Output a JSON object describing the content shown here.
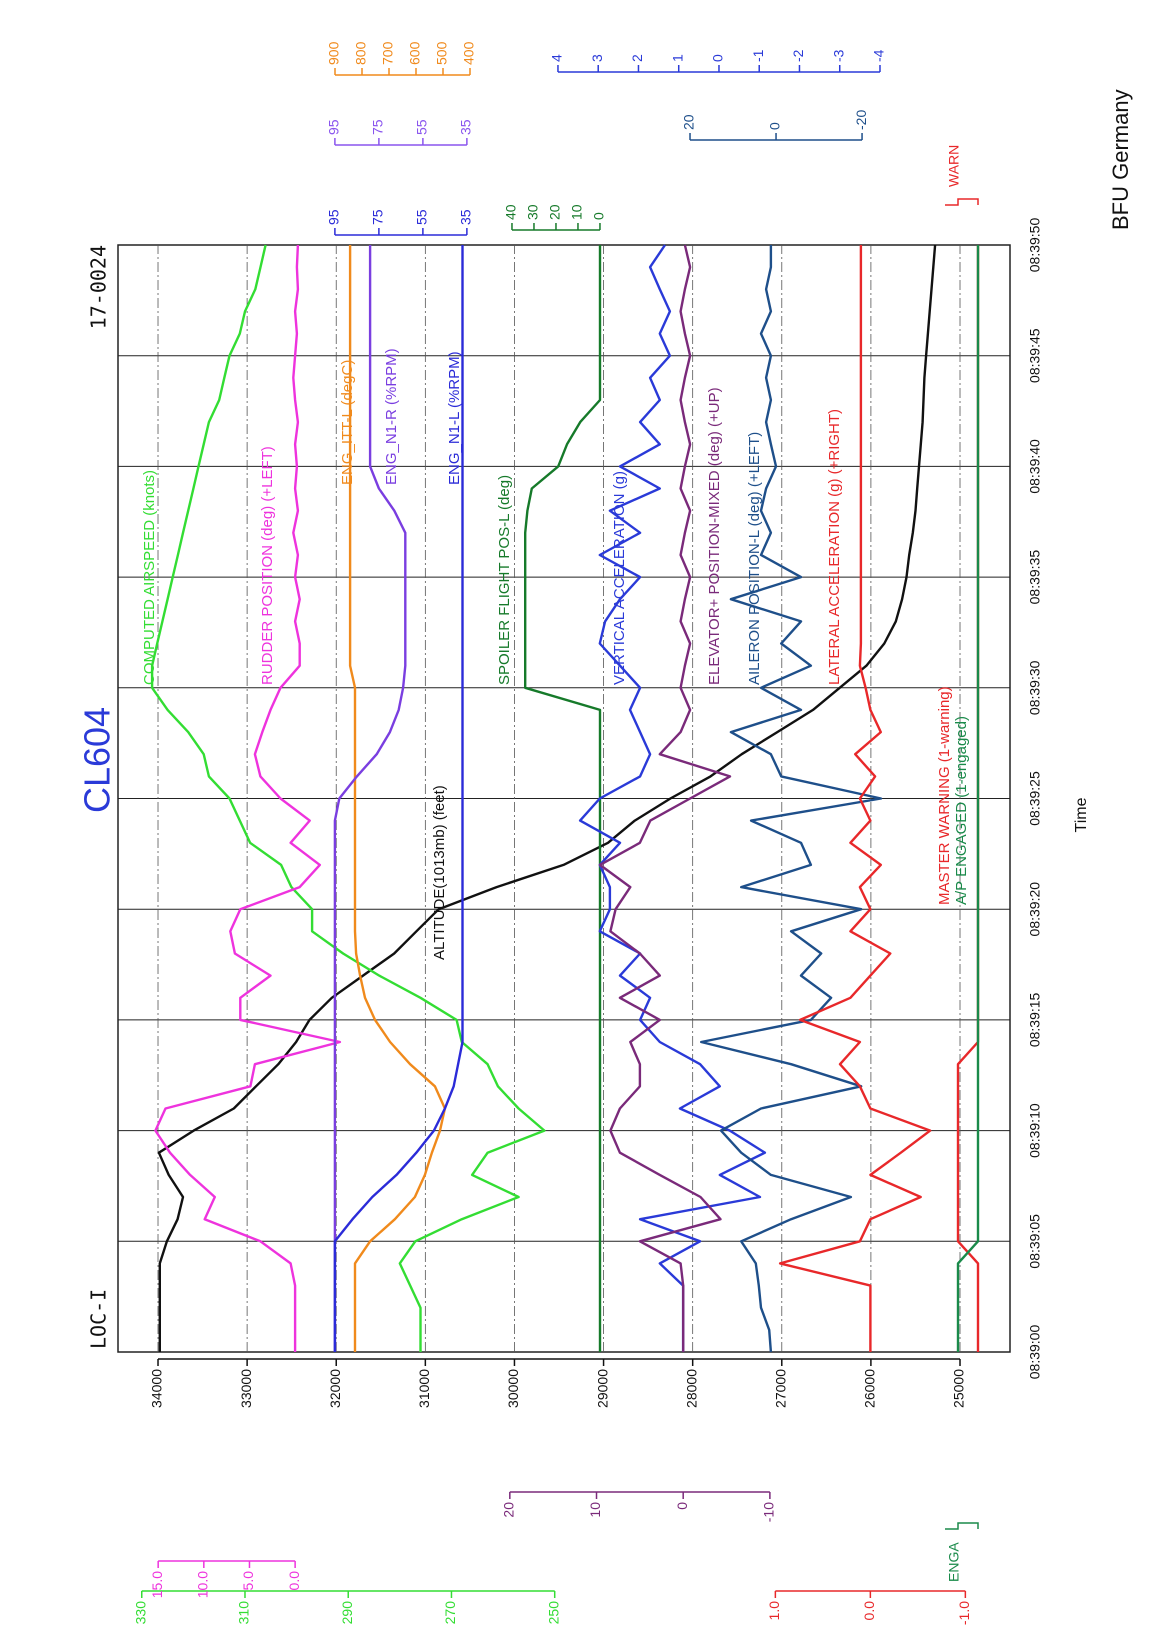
{
  "chart_data": {
    "type": "line",
    "title": "CL604",
    "subtitle_left": "LOC-I",
    "subtitle_right": "17-0024",
    "source": "BFU Germany",
    "x_label": "Time",
    "grid": true,
    "x": [
      0,
      1,
      2,
      3,
      4,
      5,
      6,
      7,
      8,
      9,
      10,
      11,
      12,
      13,
      14,
      15,
      16,
      17,
      18,
      19,
      20,
      21,
      22,
      23,
      24,
      25,
      26,
      27,
      28,
      29,
      30,
      31,
      32,
      33,
      34,
      35,
      36,
      37,
      38,
      39,
      40,
      41,
      42,
      43,
      44,
      45,
      46,
      47,
      48,
      49,
      50
    ],
    "xlim": [
      0,
      50
    ],
    "xticks": [
      {
        "value": 0,
        "label": "08:39:00"
      },
      {
        "value": 5,
        "label": "08:39:05"
      },
      {
        "value": 10,
        "label": "08:39:10"
      },
      {
        "value": 15,
        "label": "08:39:15"
      },
      {
        "value": 20,
        "label": "08:39:20"
      },
      {
        "value": 25,
        "label": "08:39:25"
      },
      {
        "value": 30,
        "label": "08:39:30"
      },
      {
        "value": 35,
        "label": "08:39:35"
      },
      {
        "value": 40,
        "label": "08:39:40"
      },
      {
        "value": 45,
        "label": "08:39:45"
      },
      {
        "value": 50,
        "label": "08:39:50"
      }
    ],
    "axes": [
      {
        "color": "#111111",
        "ylim": [
          24439,
          34449
        ],
        "yticks": [
          25000,
          26000,
          27000,
          28000,
          29000,
          30000,
          31000,
          32000,
          33000,
          34000
        ]
      },
      {
        "color": "#33dd33",
        "ylim": [
          161.8,
          334.6
        ],
        "yticks": [
          250,
          270,
          290,
          310,
          330
        ]
      },
      {
        "color": "#ee33dd",
        "ylim": [
          -78.3,
          19.4
        ],
        "yticks": [
          {
            "value": 0,
            "label": "0.0"
          },
          {
            "value": 5,
            "label": "5.0"
          },
          {
            "value": 10,
            "label": "10.0"
          },
          {
            "value": 15,
            "label": "15.0"
          }
        ]
      },
      {
        "color": "#7a2a7a",
        "ylim": [
          -37.7,
          65.2
        ],
        "yticks": [
          -10,
          0,
          10,
          20
        ]
      },
      {
        "color": "#e8282a",
        "ylim": [
          -1.47,
          7.92
        ],
        "yticks": [
          {
            "value": -1,
            "label": "-1.0"
          },
          {
            "value": 0,
            "label": "0.0"
          },
          {
            "value": 1,
            "label": "1.0"
          }
        ]
      },
      {
        "color": "#1a8a4a",
        "ylim": [
          -1.6,
          43
        ],
        "label": "ENGA"
      },
      {
        "color": "#2a3ad8",
        "ylim": [
          -7.23,
          14.93
        ],
        "yticks": [
          -4,
          -3,
          -2,
          -1,
          0,
          1,
          2,
          3,
          4
        ]
      },
      {
        "color": "#1e4f8a",
        "ylim": [
          -54.4,
          153
        ],
        "yticks": [
          -20,
          0,
          20
        ]
      },
      {
        "color": "#f08a1c",
        "ylim": [
          -1600,
          1703.7
        ],
        "yticks": [
          400,
          500,
          600,
          700,
          800,
          900
        ]
      },
      {
        "color": "#8a55ee",
        "ylim": [
          -211.9,
          193.6
        ],
        "yticks": [
          35,
          55,
          75,
          95
        ]
      },
      {
        "color": "#2b2bd8",
        "ylim": [
          -211.9,
          193.6
        ],
        "yticks": [
          35,
          55,
          75,
          95
        ]
      },
      {
        "color": "#167a2a",
        "ylim": [
          -186.4,
          219.1
        ],
        "yticks": [
          0,
          10,
          20,
          30,
          40
        ]
      },
      {
        "color": "#e8282a",
        "ylim": [
          -1.6,
          43
        ],
        "label": "WARN"
      }
    ],
    "series": [
      {
        "name": "ALTITUDE(1013mb) (feet)",
        "color": "#111111",
        "axis": 0,
        "values": [
          33980,
          33980,
          33980,
          33980,
          33980,
          33900,
          33780,
          33720,
          33880,
          33990,
          33600,
          33150,
          32900,
          32650,
          32450,
          32300,
          32050,
          31700,
          31350,
          31100,
          30850,
          30200,
          29450,
          28950,
          28650,
          28250,
          27800,
          27450,
          27050,
          26650,
          26350,
          26050,
          25850,
          25720,
          25650,
          25600,
          25570,
          25530,
          25500,
          25480,
          25460,
          25440,
          25420,
          25410,
          25400,
          25380,
          25360,
          25340,
          25320,
          25300,
          25280
        ]
      },
      {
        "name": "COMPUTED AIRSPEED (knots)",
        "color": "#33dd33",
        "axis": 1,
        "values": [
          276,
          276,
          276,
          278,
          280,
          277,
          268,
          257,
          266,
          263,
          252,
          257,
          261,
          263,
          268,
          269,
          276,
          284,
          291,
          297,
          297,
          301,
          303,
          309,
          311,
          313,
          317,
          318,
          321,
          325,
          328,
          328,
          327,
          326,
          325,
          324,
          323,
          322,
          321,
          320,
          319,
          318,
          317,
          315,
          314,
          313,
          311,
          310,
          308,
          307,
          306
        ]
      },
      {
        "name": "RUDDER POSITION (deg) (+LEFT)",
        "color": "#ee33dd",
        "axis": 2,
        "values": [
          0,
          0,
          0,
          0,
          0.5,
          3.8,
          9.9,
          8.8,
          11.5,
          13.7,
          15.3,
          14.2,
          4.9,
          4.4,
          -4.9,
          6.0,
          6.0,
          2.7,
          6.6,
          7.1,
          6.0,
          -0.5,
          -2.7,
          0.5,
          -1.6,
          1.6,
          3.8,
          4.4,
          3.6,
          2.7,
          1.6,
          -0.5,
          -0.5,
          0,
          -0.5,
          0,
          -0.3,
          0.2,
          -0.3,
          0,
          -0.2,
          0,
          -0.3,
          0,
          0.2,
          0,
          -0.2,
          0,
          -0.3,
          -0.2,
          -0.3
        ]
      },
      {
        "name": "ENG_ITT-L (degC)",
        "color": "#f08a1c",
        "axis": 8,
        "values": [
          826,
          826,
          826,
          826,
          826,
          770,
          678,
          604,
          567,
          541,
          511,
          493,
          530,
          622,
          696,
          752,
          789,
          807,
          822,
          826,
          826,
          826,
          826,
          826,
          826,
          826,
          826,
          826,
          826,
          826,
          826,
          844,
          844,
          844,
          844,
          844,
          844,
          844,
          844,
          844,
          844,
          844,
          844,
          844,
          844,
          844,
          844,
          844,
          844,
          844,
          844
        ]
      },
      {
        "name": "ENG_N1-R (%RPM)",
        "color": "#7a3ee0",
        "axis": 9,
        "values": [
          95,
          95,
          95,
          95,
          95,
          95,
          95,
          95,
          95,
          95,
          95,
          95,
          95,
          95,
          95,
          95,
          95,
          95,
          95,
          95,
          95,
          95,
          95,
          95,
          95,
          93,
          85,
          76,
          70,
          66,
          64,
          63,
          63,
          63,
          63,
          63,
          63,
          63,
          68,
          75,
          79,
          79,
          79,
          79,
          79,
          79,
          79,
          79,
          79,
          79,
          79
        ]
      },
      {
        "name": "ENG_N1-L (%RPM)",
        "color": "#2b2bd8",
        "axis": 10,
        "values": [
          95,
          95,
          95,
          95,
          95,
          95,
          87,
          78,
          67,
          58,
          50,
          45,
          41,
          39,
          37,
          37,
          37,
          37,
          37,
          37,
          37,
          37,
          37,
          37,
          37,
          37,
          37,
          37,
          37,
          37,
          37,
          37,
          37,
          37,
          37,
          37,
          37,
          37,
          37,
          37,
          37,
          37,
          37,
          37,
          37,
          37,
          37,
          37,
          37,
          37,
          37
        ]
      },
      {
        "name": "SPOILER FLIGHT POS-L (deg)",
        "color": "#167a2a",
        "axis": 11,
        "values": [
          0,
          0,
          0,
          0,
          0,
          0,
          0,
          0,
          0,
          0,
          0,
          0,
          0,
          0,
          0,
          0,
          0,
          0,
          0,
          0,
          0,
          0,
          0,
          0,
          0,
          0,
          0,
          0,
          0,
          0,
          34,
          34,
          34,
          34,
          34,
          34,
          34,
          34,
          33,
          31,
          19,
          15,
          9,
          0,
          0,
          0,
          0,
          0,
          0,
          0,
          0
        ]
      },
      {
        "name": "VERTICAL ACCELERATION (g)",
        "color": "#2a3ad8",
        "axis": 6,
        "values": [
          0.89,
          0.89,
          0.89,
          0.89,
          1.47,
          0.47,
          1.96,
          -1.02,
          -0.02,
          -1.14,
          -0.27,
          0.97,
          -0.02,
          0.47,
          1.47,
          1.96,
          1.71,
          2.46,
          1.96,
          2.96,
          2.71,
          2.71,
          2.96,
          2.46,
          3.45,
          2.96,
          1.96,
          1.71,
          1.96,
          2.21,
          1.96,
          2.46,
          2.96,
          2.83,
          2.46,
          1.96,
          2.96,
          1.96,
          2.71,
          1.47,
          2.46,
          1.47,
          1.96,
          1.47,
          1.71,
          1.22,
          1.47,
          1.22,
          1.47,
          1.71,
          1.34
        ]
      },
      {
        "name": "ELEVATOR+ POSITION-MIXED (deg) (+UP)",
        "color": "#7a2a7a",
        "axis": 3,
        "values": [
          0,
          0,
          0,
          0,
          0.3,
          5.0,
          -4.3,
          -2.0,
          2.7,
          7.3,
          8.4,
          7.3,
          5.0,
          5.0,
          6.1,
          2.7,
          7.3,
          2.7,
          5.0,
          8.4,
          7.8,
          6.1,
          9.6,
          5.0,
          3.8,
          -0.8,
          -5.4,
          2.7,
          0.3,
          -0.8,
          0.3,
          -0.2,
          -0.8,
          0.3,
          -0.2,
          -0.8,
          0.3,
          -0.2,
          -0.8,
          0.3,
          -0.2,
          -0.8,
          -0.2,
          0.3,
          -0.2,
          -0.8,
          -0.2,
          0.3,
          -0.2,
          -0.8,
          -0.2
        ]
      },
      {
        "name": "AILERON POSITION-L (deg) (+LEFT)",
        "color": "#1e4f8a",
        "axis": 7,
        "values": [
          1.2,
          1.6,
          3.5,
          4.0,
          4.7,
          8.1,
          -3.5,
          -17.4,
          1.2,
          8.1,
          12.8,
          3.5,
          -19.8,
          -3.5,
          17.4,
          -8.1,
          -12.8,
          -5.8,
          -10.5,
          -3.5,
          -19.8,
          8.1,
          -8.1,
          -5.8,
          5.8,
          -24.4,
          -1.2,
          1.2,
          10.5,
          -5.8,
          3.5,
          -8.1,
          -1.2,
          -5.8,
          10.5,
          -5.8,
          3.5,
          1.2,
          3.5,
          2.3,
          0,
          1.2,
          2.3,
          1.2,
          2.3,
          1.2,
          3.5,
          1.2,
          2.3,
          1.2,
          1.2
        ]
      },
      {
        "name": "LATERAL ACCELERATION (g) (+RIGHT)",
        "color": "#e8282a",
        "axis": 4,
        "values": [
          0,
          0,
          0,
          0,
          0.95,
          0.11,
          0,
          -0.53,
          0,
          -0.32,
          -0.63,
          0,
          0.11,
          0.32,
          0.11,
          0.74,
          0.21,
          0,
          -0.21,
          0.21,
          0,
          0.11,
          -0.11,
          0.21,
          0,
          0.11,
          -0.05,
          0.16,
          -0.11,
          0,
          0.05,
          0.11,
          0.1,
          0.1,
          0.1,
          0.1,
          0.1,
          0.1,
          0.1,
          0.1,
          0.1,
          0.1,
          0.1,
          0.1,
          0.1,
          0.1,
          0.1,
          0.1,
          0.1,
          0.1,
          0.1
        ]
      },
      {
        "name": "MASTER WARNING (1-warning)",
        "color": "#e8282a",
        "axis": 12,
        "values": [
          0,
          0,
          0,
          0,
          0,
          1,
          1,
          1,
          1,
          1,
          1,
          1,
          1,
          1,
          0,
          0,
          0,
          0,
          0,
          0,
          0,
          0,
          0,
          0,
          0,
          0,
          0,
          0,
          0,
          0,
          0,
          0,
          0,
          0,
          0,
          0,
          0,
          0,
          0,
          0,
          0,
          0,
          0,
          0,
          0,
          0,
          0,
          0,
          0,
          0,
          0
        ]
      },
      {
        "name": "A/P ENGAGED (1-engaged)",
        "color": "#1a8a4a",
        "axis": 5,
        "values": [
          1,
          1,
          1,
          1,
          1,
          0,
          0,
          0,
          0,
          0,
          0,
          0,
          0,
          0,
          0,
          0,
          0,
          0,
          0,
          0,
          0,
          0,
          0,
          0,
          0,
          0,
          0,
          0,
          0,
          0,
          0,
          0,
          0,
          0,
          0,
          0,
          0,
          0,
          0,
          0,
          0,
          0,
          0,
          0,
          0,
          0,
          0,
          0,
          0,
          0,
          0
        ]
      }
    ]
  }
}
